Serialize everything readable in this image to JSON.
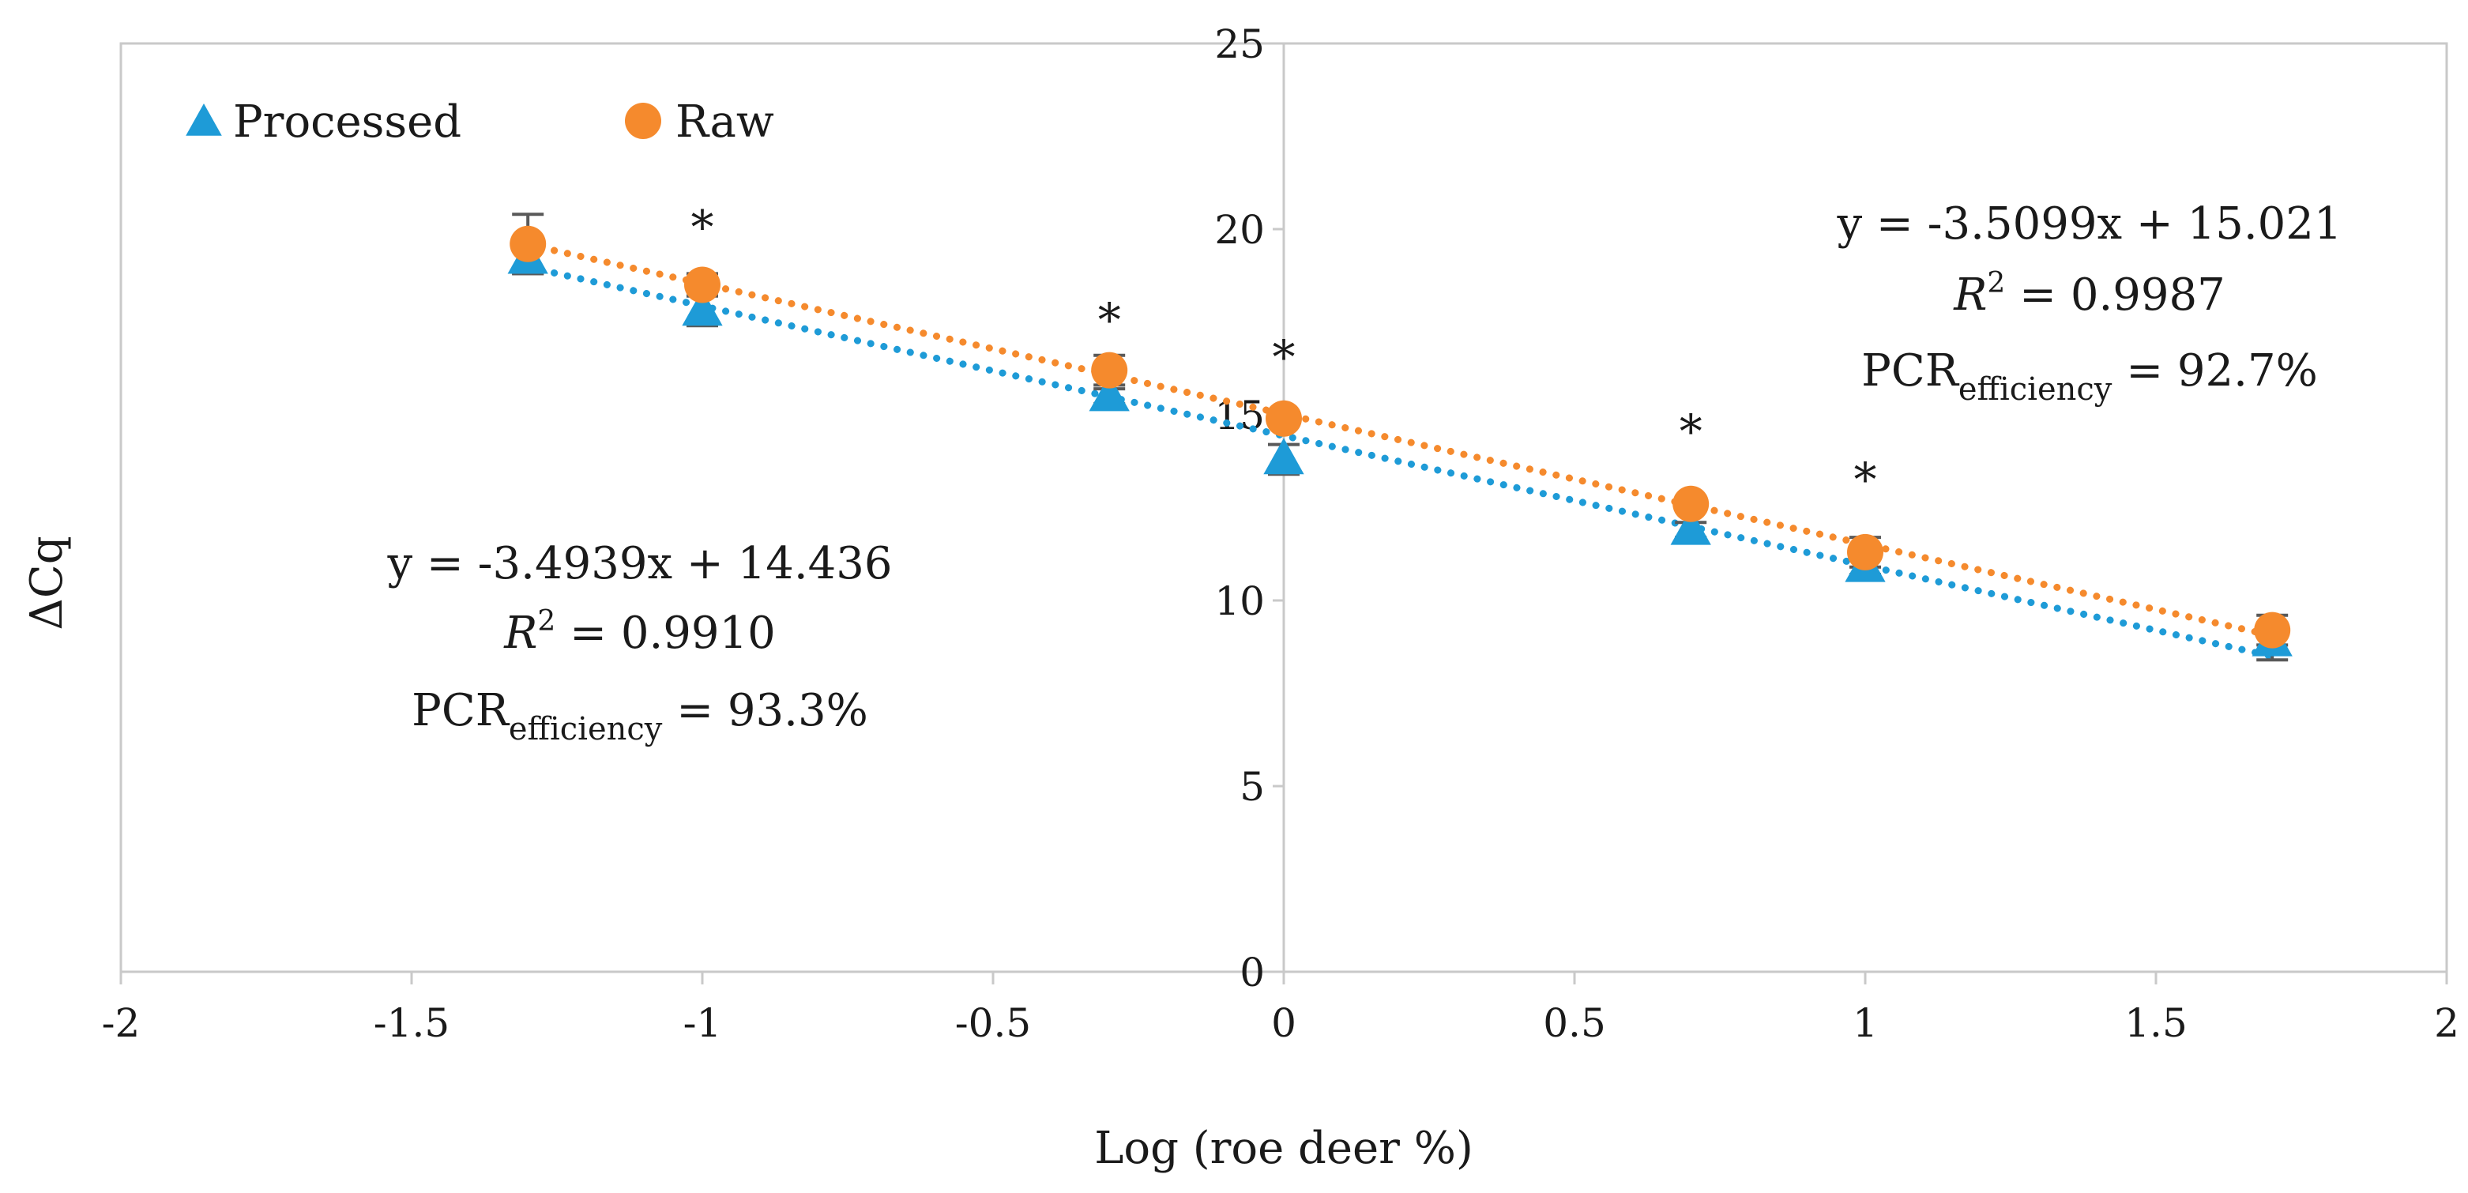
{
  "chart_data": {
    "type": "scatter",
    "xlabel": "Log (roe deer %)",
    "ylabel": "ΔCq",
    "xlim": [
      -2,
      2
    ],
    "ylim": [
      0,
      25
    ],
    "x_ticks": [
      -2,
      -1.5,
      -1,
      -0.5,
      0,
      0.5,
      1,
      1.5,
      2
    ],
    "x_tick_labels": [
      "-2",
      "-1.5",
      "-1",
      "-0.5",
      "0",
      "0.5",
      "1",
      "1.5",
      "2"
    ],
    "y_ticks": [
      0,
      5,
      10,
      15,
      20,
      25
    ],
    "y_tick_labels": [
      "0",
      "5",
      "10",
      "15",
      "20",
      "25"
    ],
    "legend_position": "top-left",
    "series": [
      {
        "name": "Processed",
        "marker": "triangle",
        "color": "#1e9bd7",
        "x": [
          -1.3,
          -1,
          -0.3,
          0,
          0.7,
          1,
          1.7
        ],
        "y": [
          19.2,
          17.8,
          15.5,
          13.8,
          11.9,
          10.9,
          8.9
        ],
        "error": [
          0.4,
          0.4,
          0.2,
          0.4,
          0.2,
          0.2,
          0.5
        ],
        "trendline": {
          "slope": -3.4939,
          "intercept": 14.436
        }
      },
      {
        "name": "Raw",
        "marker": "circle",
        "color": "#f58a2d",
        "x": [
          -1.3,
          -1,
          -0.3,
          0,
          0.7,
          1,
          1.7
        ],
        "y": [
          19.6,
          18.5,
          16.2,
          14.9,
          12.6,
          11.3,
          9.2
        ],
        "error": [
          0.8,
          0.3,
          0.4,
          0.2,
          0.2,
          0.4,
          0.4
        ],
        "trendline": {
          "slope": -3.5099,
          "intercept": 15.021
        }
      }
    ],
    "significance_markers": {
      "symbol": "*",
      "points": [
        {
          "x": -1,
          "y": 20.1
        },
        {
          "x": -0.3,
          "y": 17.6
        },
        {
          "x": 0,
          "y": 16.6
        },
        {
          "x": 0.7,
          "y": 14.6
        },
        {
          "x": 1,
          "y": 13.3
        }
      ]
    },
    "annotations": {
      "processed": {
        "equation": "y = -3.4939x + 14.436",
        "r2_symbol": "R",
        "r2_exponent": "2",
        "r2_value": " = 0.9910",
        "efficiency_prefix": "PCR",
        "efficiency_subscript": "efficiency",
        "efficiency_value": " = 93.3%"
      },
      "raw": {
        "equation": "y = -3.5099x + 15.021",
        "r2_symbol": "R",
        "r2_exponent": "2",
        "r2_value": " = 0.9987",
        "efficiency_prefix": "PCR",
        "efficiency_subscript": "efficiency",
        "efficiency_value": " = 92.7%"
      }
    }
  }
}
